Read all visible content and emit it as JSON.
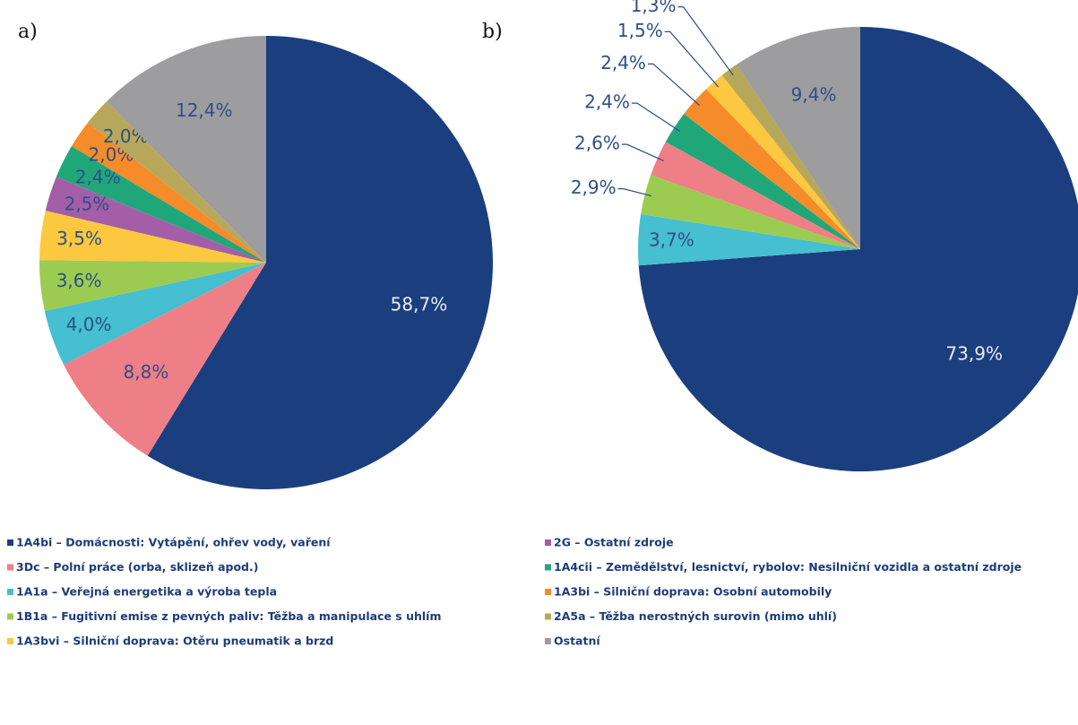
{
  "chart_data": [
    {
      "type": "pie",
      "label": "a)",
      "values": [
        58.7,
        8.8,
        4.0,
        3.6,
        3.5,
        2.5,
        2.4,
        2.0,
        2.0,
        12.4
      ],
      "value_labels": [
        "58,7%",
        "8,8%",
        "4,0%",
        "3,6%",
        "3,5%",
        "2,5%",
        "2,4%",
        "2,0%",
        "2,0%",
        "12,4%"
      ],
      "colors": [
        "#1b3f7e",
        "#ef7f86",
        "#46bfd0",
        "#9ccb52",
        "#fbc83f",
        "#a45ea8",
        "#1fa77a",
        "#f68b2a",
        "#b7a75a",
        "#9d9c9f"
      ]
    },
    {
      "type": "pie",
      "label": "b)",
      "values": [
        73.9,
        3.7,
        2.9,
        2.6,
        2.4,
        2.4,
        1.5,
        1.3,
        9.4
      ],
      "value_labels": [
        "73,9%",
        "3,7%",
        "2,9%",
        "2,6%",
        "2,4%",
        "2,4%",
        "1,5%",
        "1,3%",
        "9,4%"
      ],
      "colors": [
        "#1b3f7e",
        "#46bfd0",
        "#9ccb52",
        "#ef7f86",
        "#1fa77a",
        "#f68b2a",
        "#fbc83f",
        "#b7a75a",
        "#9d9c9f"
      ]
    }
  ],
  "legend": {
    "items": [
      {
        "name": "1A4bi – Domácnosti: Vytápění, ohřev vody, vaření",
        "color": "#1b3f7e"
      },
      {
        "name": "3Dc – Polní práce (orba, sklizeň apod.)",
        "color": "#ef7f86"
      },
      {
        "name": "1A1a  – Veřejná energetika a výroba tepla",
        "color": "#46bfd0"
      },
      {
        "name": "1B1a  – Fugitivní emise z pevných paliv: Těžba a manipulace s uhlím",
        "color": "#9ccb52"
      },
      {
        "name": "1A3bvi – Silniční doprava: Otěru pneumatik a brzd",
        "color": "#fbc83f"
      },
      {
        "name": "2G – Ostatní zdroje",
        "color": "#a45ea8"
      },
      {
        "name": "1A4cii – Zemědělství, lesnictví, rybolov: Nesilniční vozidla a ostatní zdroje",
        "color": "#1fa77a"
      },
      {
        "name": "1A3bi – Silniční doprava: Osobní automobily",
        "color": "#f68b2a"
      },
      {
        "name": "2A5a – Těžba nerostných surovin (mimo uhlí)",
        "color": "#b7a75a"
      },
      {
        "name": "Ostatní",
        "color": "#9d9c9f"
      }
    ]
  }
}
